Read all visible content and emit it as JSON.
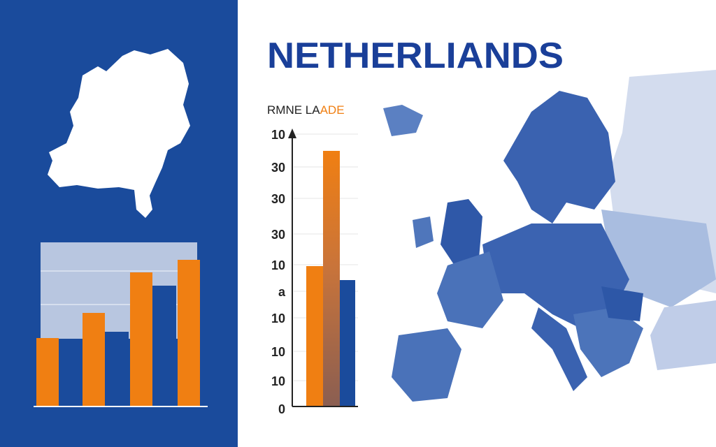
{
  "header": {
    "title": "NETHERLIANDS"
  },
  "chart": {
    "title_dark": "RMNE LA",
    "title_accent": "ADE",
    "axis_labels": [
      "10",
      "30",
      "30",
      "30",
      "10",
      "a",
      "10",
      "10",
      "10",
      "0"
    ]
  }
}
